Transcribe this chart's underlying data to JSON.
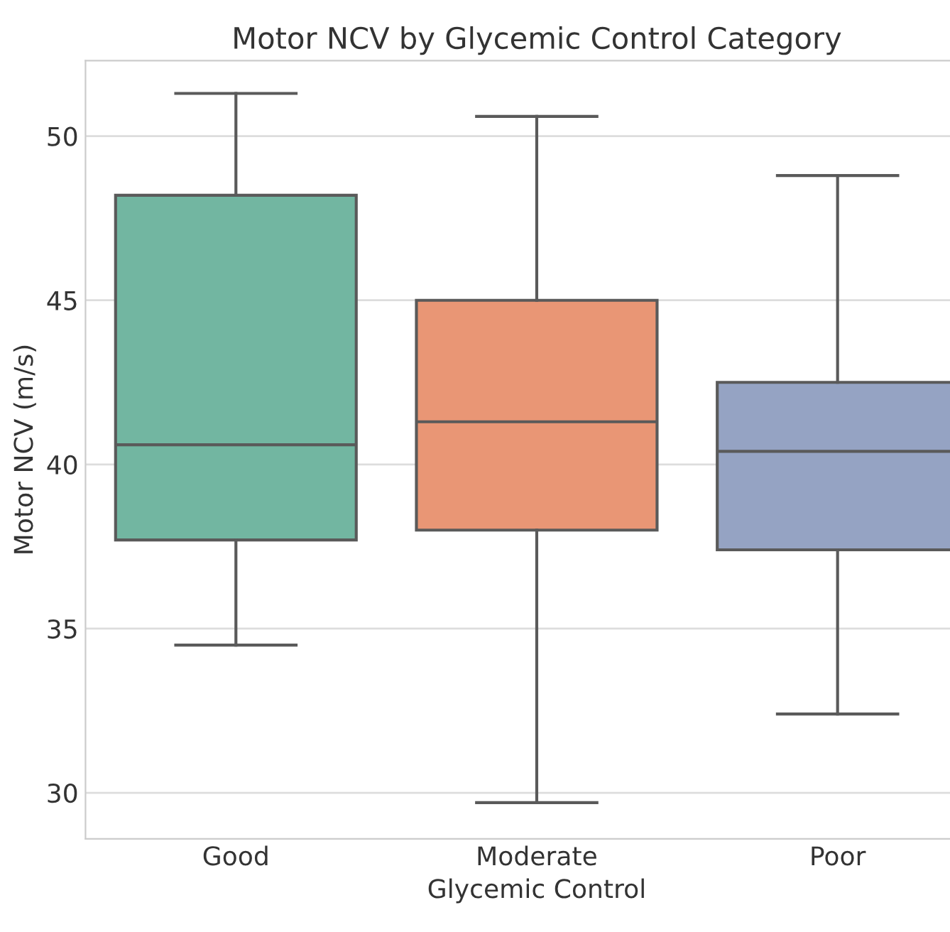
{
  "chart_data": {
    "type": "box",
    "title": "Motor NCV by Glycemic Control Category",
    "xlabel": "Glycemic Control",
    "ylabel": "Motor NCV (m/s)",
    "categories": [
      "Good",
      "Moderate",
      "Poor"
    ],
    "boxes": [
      {
        "low": 34.5,
        "q1": 37.7,
        "median": 40.6,
        "q3": 48.2,
        "high": 51.3
      },
      {
        "low": 29.7,
        "q1": 38.0,
        "median": 41.3,
        "q3": 45.0,
        "high": 50.6
      },
      {
        "low": 32.4,
        "q1": 37.4,
        "median": 40.4,
        "q3": 42.5,
        "high": 48.8
      }
    ],
    "colors": [
      "#72b6a1",
      "#e99675",
      "#95a3c3"
    ],
    "ylim": [
      28.6,
      52.3
    ],
    "yticks": [
      30,
      35,
      40,
      45,
      50
    ],
    "grid": "y"
  }
}
